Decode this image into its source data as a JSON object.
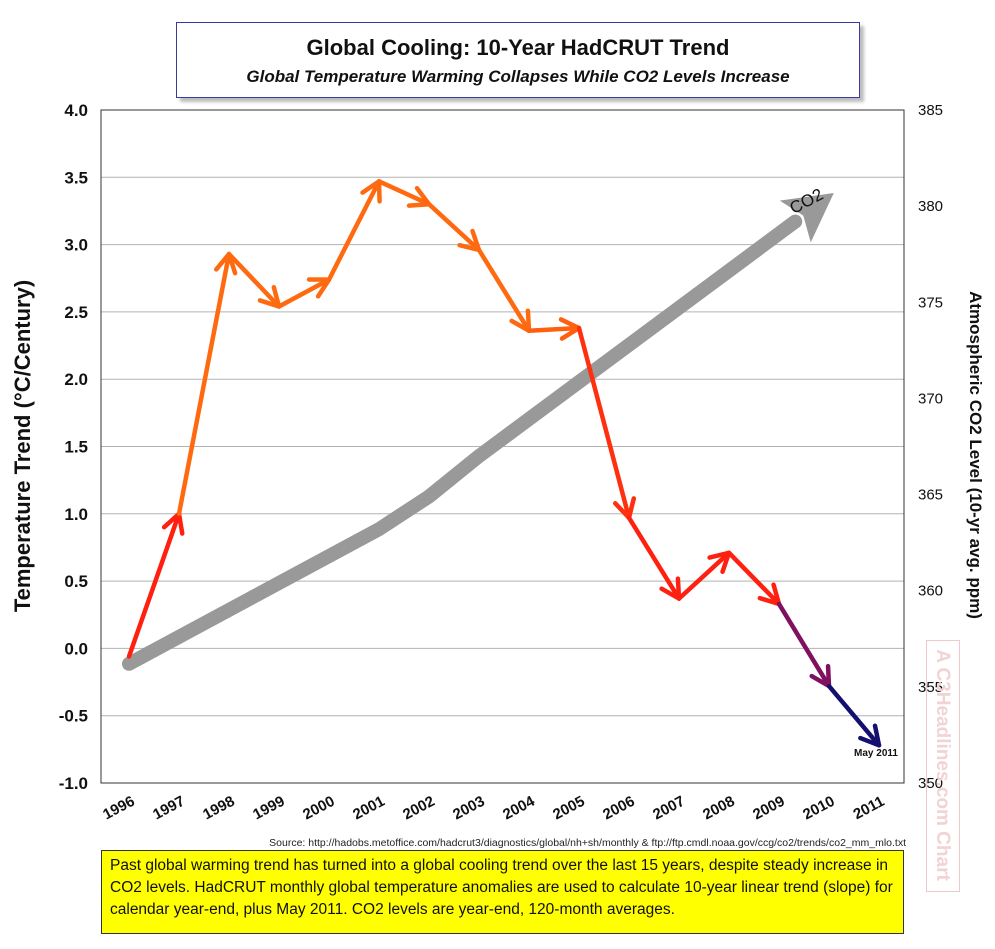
{
  "title": "Global Cooling: 10-Year HadCRUT Trend",
  "subtitle": "Global Temperature Warming Collapses While CO2 Levels Increase",
  "source": "Source: http://hadobs.metoffice.com/hadcrut3/diagnostics/global/nh+sh/monthly  &  ftp://ftp.cmdl.noaa.gov/ccg/co2/trends/co2_mm_mlo.txt",
  "note": "Past global warming trend has turned into a global cooling trend over the last 15 years, despite steady increase in CO2 levels. HadCRUT monthly global temperature anomalies are used to calculate 10-year linear trend (slope) for calendar year-end, plus May 2011. CO2 levels are year-end, 120-month averages.",
  "watermark": "A C3Headlines.com Chart",
  "chart_data": {
    "type": "line",
    "ylabel": "Temperature Trend  (°C/Century)",
    "y2label": "Atmospheric CO2 Level (10-yr avg. ppm)",
    "ylim": [
      -1.0,
      4.0
    ],
    "y2lim": [
      350,
      385
    ],
    "yticks": [
      "4.0",
      "3.5",
      "3.0",
      "2.5",
      "2.0",
      "1.5",
      "1.0",
      "0.5",
      "0.0",
      "-0.5",
      "-1.0"
    ],
    "y2ticks": [
      "385",
      "380",
      "375",
      "370",
      "365",
      "360",
      "355",
      "350"
    ],
    "categories": [
      "1996",
      "1997",
      "1998",
      "1999",
      "2000",
      "2001",
      "2002",
      "2003",
      "2004",
      "2005",
      "2006",
      "2007",
      "2008",
      "2009",
      "2010",
      "2011"
    ],
    "grid": true,
    "series": [
      {
        "role": "temperature",
        "x": [
          1996,
          1997,
          1998,
          1999,
          2000,
          2001,
          2002,
          2003,
          2004,
          2005,
          2006,
          2007,
          2008,
          2009,
          2010,
          2011
        ],
        "values": [
          -0.06,
          1.0,
          2.93,
          2.54,
          2.74,
          3.47,
          3.3,
          2.96,
          2.36,
          2.38,
          0.97,
          0.37,
          0.71,
          0.33,
          -0.28,
          -0.72
        ],
        "colors": [
          "#7a1060",
          "#ff2010",
          "#ff6a10",
          "#ff6a10",
          "#ff6a10",
          "#ff6a10",
          "#ff6a10",
          "#ff6a10",
          "#ff6a10",
          "#ff6010",
          "#ff3010",
          "#ff2010",
          "#ff2010",
          "#ff2010",
          "#801060",
          "#141070"
        ]
      },
      {
        "name": "CO2",
        "role": "co2",
        "x": [
          1996,
          2001,
          2002,
          2003,
          2010
        ],
        "values": [
          356.2,
          363.2,
          364.9,
          367.0,
          380.5
        ],
        "color": "#999999"
      }
    ],
    "annotations": [
      {
        "text": "CO2",
        "x": 2009.6,
        "y2": 380.0
      },
      {
        "text": "May 2011",
        "x": 2011,
        "y": -0.8
      }
    ]
  }
}
